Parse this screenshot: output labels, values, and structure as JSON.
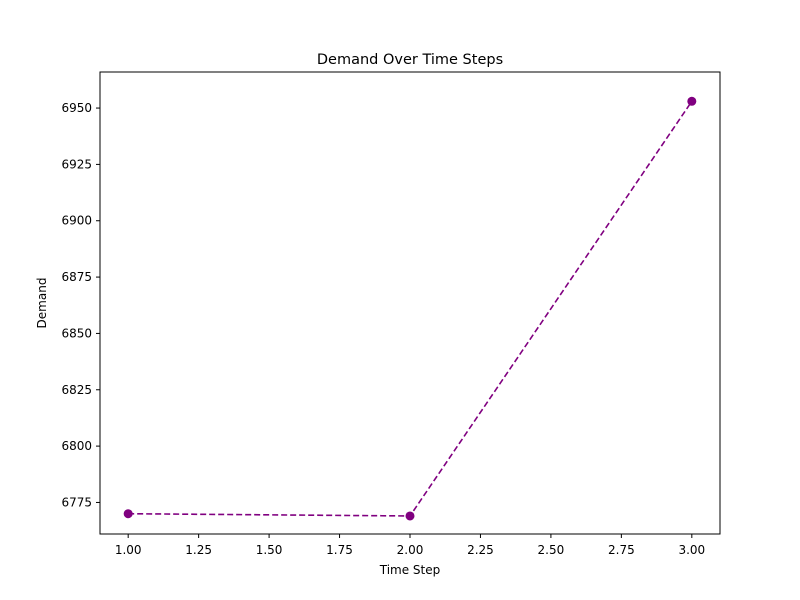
{
  "chart_data": {
    "type": "line",
    "title": "Demand Over Time Steps",
    "xlabel": "Time Step",
    "ylabel": "Demand",
    "xlim": [
      0.9,
      3.1
    ],
    "ylim": [
      6761,
      6966
    ],
    "x_ticks": [
      1.0,
      1.25,
      1.5,
      1.75,
      2.0,
      2.25,
      2.5,
      2.75,
      3.0
    ],
    "x_tick_labels": [
      "1.00",
      "1.25",
      "1.50",
      "1.75",
      "2.00",
      "2.25",
      "2.50",
      "2.75",
      "3.00"
    ],
    "y_ticks": [
      6775,
      6800,
      6825,
      6850,
      6875,
      6900,
      6925,
      6950
    ],
    "y_tick_labels": [
      "6775",
      "6800",
      "6825",
      "6850",
      "6875",
      "6900",
      "6925",
      "6950"
    ],
    "grid": false,
    "series": [
      {
        "x": [
          1.0,
          2.0,
          3.0
        ],
        "values": [
          6770,
          6769,
          6953
        ],
        "color": "#800080",
        "line_style": "dashed",
        "marker": "circle"
      }
    ]
  }
}
